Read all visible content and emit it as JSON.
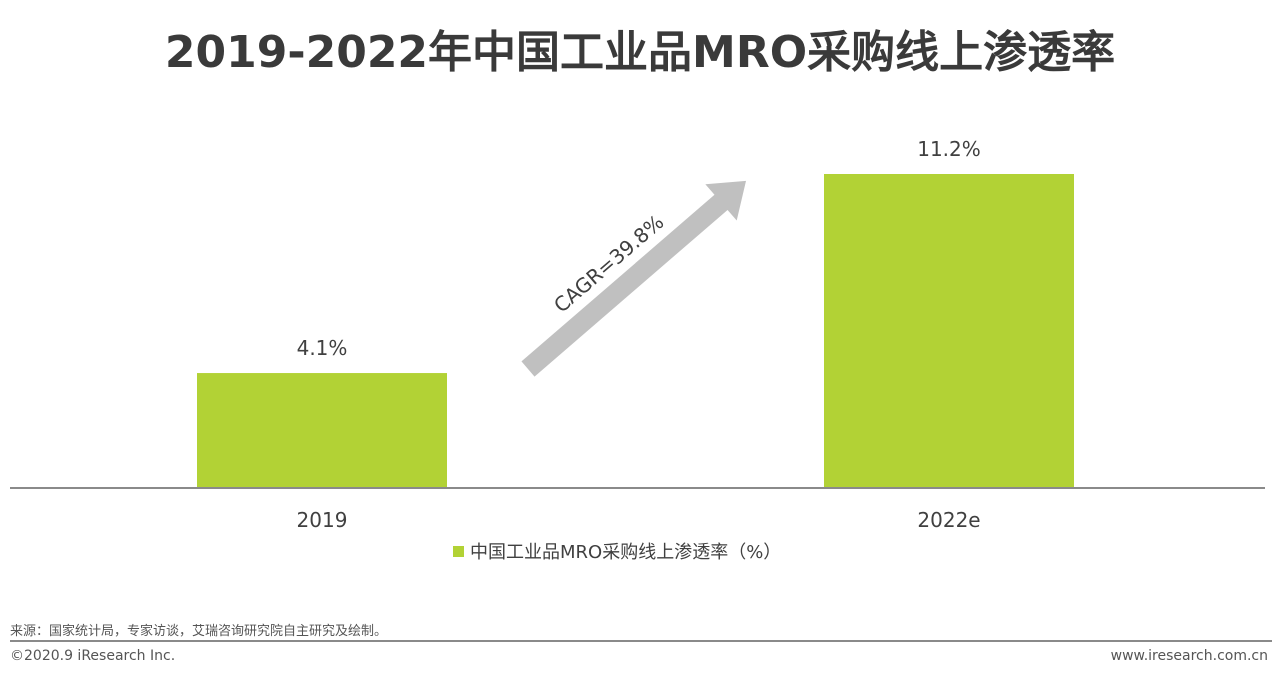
{
  "chart_data": {
    "type": "bar",
    "title": "2019-2022年中国工业品MRO采购线上渗透率",
    "categories": [
      "2019",
      "2022e"
    ],
    "series": [
      {
        "name": "中国工业品MRO采购线上渗透率（%）",
        "values": [
          4.1,
          11.2
        ],
        "color": "#b2d235"
      }
    ],
    "data_labels": [
      "4.1%",
      "11.2%"
    ],
    "annotations": [
      {
        "text": "CAGR=39.8%",
        "shape": "arrow-up-right",
        "color": "#c0c0c0"
      }
    ],
    "ylim": [
      0,
      12
    ],
    "grid": false,
    "legend": "bottom"
  },
  "footer": {
    "source": "来源：国家统计局，专家访谈，艾瑞咨询研究院自主研究及绘制。",
    "copyright": "©2020.9 iResearch Inc.",
    "url": "www.iresearch.com.cn"
  }
}
